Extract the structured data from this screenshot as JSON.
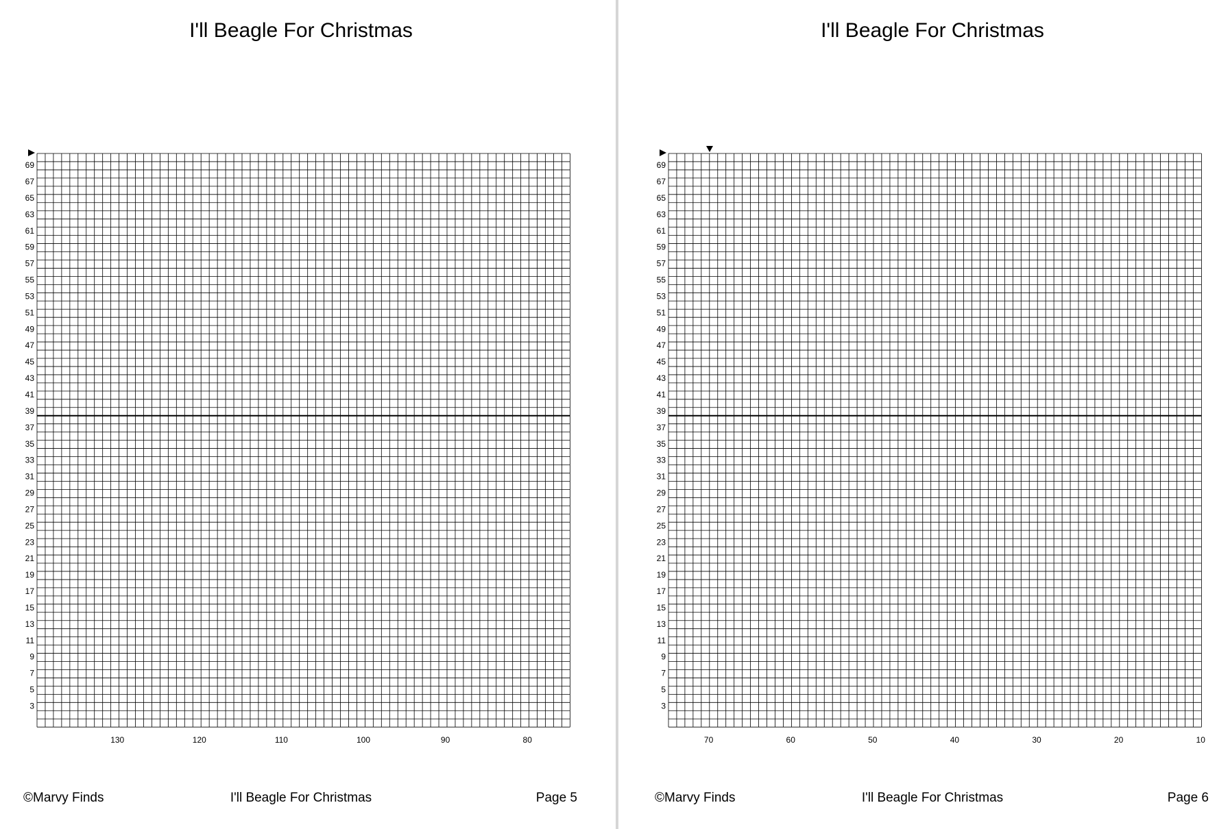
{
  "pages": [
    {
      "title": "I'll Beagle For Christmas",
      "row_labels": [
        "69",
        "67",
        "65",
        "63",
        "61",
        "59",
        "57",
        "55",
        "53",
        "51",
        "49",
        "47",
        "45",
        "43",
        "41",
        "39",
        "37",
        "35",
        "33",
        "31",
        "29",
        "27",
        "25",
        "23",
        "21",
        "19",
        "17",
        "15",
        "13",
        "11",
        "9",
        "7",
        "5",
        "3"
      ],
      "column_labels": [
        "130",
        "120",
        "110",
        "100",
        "90",
        "80"
      ],
      "footer": {
        "copyright": "©Marvy Finds",
        "title": "I'll Beagle For Christmas",
        "page": "Page 5"
      }
    },
    {
      "title": "I'll Beagle For Christmas",
      "row_labels": [
        "69",
        "67",
        "65",
        "63",
        "61",
        "59",
        "57",
        "55",
        "53",
        "51",
        "49",
        "47",
        "45",
        "43",
        "41",
        "39",
        "37",
        "35",
        "33",
        "31",
        "29",
        "27",
        "25",
        "23",
        "21",
        "19",
        "17",
        "15",
        "13",
        "11",
        "9",
        "7",
        "5",
        "3"
      ],
      "column_labels": [
        "70",
        "60",
        "50",
        "40",
        "30",
        "20",
        "10"
      ],
      "footer": {
        "copyright": "©Marvy Finds",
        "title": "I'll Beagle For Christmas",
        "page": "Page 6"
      }
    }
  ]
}
